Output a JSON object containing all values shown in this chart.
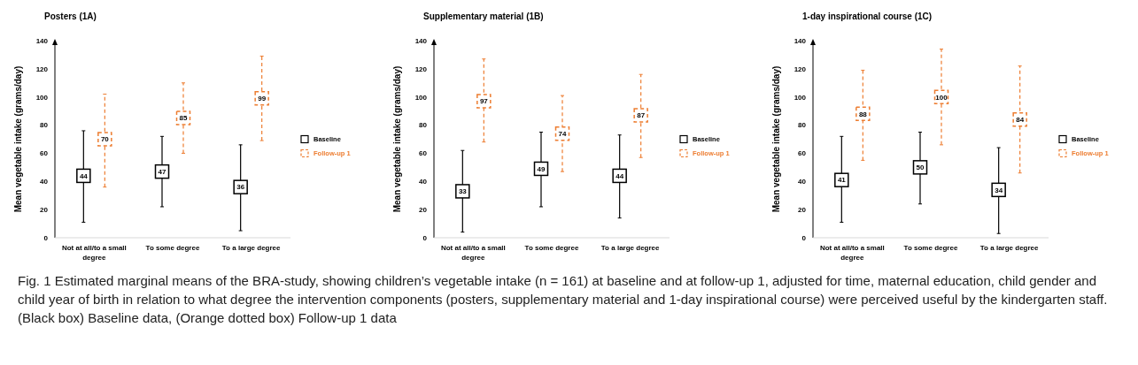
{
  "chart_data": [
    {
      "type": "scatter",
      "title": "Posters (1A)",
      "ylabel": "Mean vegetable intake (grams/day)",
      "categories": [
        "Not at all/to a small degree",
        "To some degree",
        "To a large degree"
      ],
      "ylim": [
        0,
        140
      ],
      "yticks": [
        0,
        20,
        40,
        60,
        80,
        100,
        120,
        140
      ],
      "marker": "square",
      "legend": "right",
      "data_labels": true,
      "series": [
        {
          "name": "Baseline",
          "color": "#000000",
          "line_style": "solid",
          "values": [
            44,
            47,
            36
          ],
          "errors": [
            [
              11,
              76
            ],
            [
              22,
              72
            ],
            [
              5,
              66
            ]
          ]
        },
        {
          "name": "Follow-up 1",
          "color": "#ed7d31",
          "line_style": "dashed",
          "values": [
            70,
            85,
            99
          ],
          "errors": [
            [
              36,
              102
            ],
            [
              60,
              110
            ],
            [
              69,
              129
            ]
          ]
        }
      ],
      "annotations": [
        "Fig. 1  Estimated marginal means of the BRA-study, showing children’s vegetable intake (n = 161) at baseline and at follow-up 1, adjusted for time, maternal education, child gender and child year of birth in relation to what degree the intervention components (posters, supplementary material and 1-day inspirational course) were perceived useful by the kindergarten staff. (Black box) Baseline data, (Orange dotted box) Follow-up 1 data"
      ]
    },
    {
      "type": "scatter",
      "title": "Supplementary material (1B)",
      "ylabel": "Mean vegetable intake (grams/day)",
      "categories": [
        "Not at all/to a small degree",
        "To some degree",
        "To a large degree"
      ],
      "ylim": [
        0,
        140
      ],
      "yticks": [
        0,
        20,
        40,
        60,
        80,
        100,
        120,
        140
      ],
      "marker": "square",
      "legend": "right",
      "data_labels": true,
      "series": [
        {
          "name": "Baseline",
          "color": "#000000",
          "line_style": "solid",
          "values": [
            33,
            49,
            44
          ],
          "errors": [
            [
              4,
              62
            ],
            [
              22,
              75
            ],
            [
              14,
              73
            ]
          ]
        },
        {
          "name": "Follow-up 1",
          "color": "#ed7d31",
          "line_style": "dashed",
          "values": [
            97,
            74,
            87
          ],
          "errors": [
            [
              68,
              127
            ],
            [
              47,
              101
            ],
            [
              57,
              116
            ]
          ]
        }
      ]
    },
    {
      "type": "scatter",
      "title": "1-day inspirational course (1C)",
      "ylabel": "Mean vegetable intake (grams/day)",
      "categories": [
        "Not at all/to a small degree",
        "To some degree",
        "To a large degree"
      ],
      "ylim": [
        0,
        140
      ],
      "yticks": [
        0,
        20,
        40,
        60,
        80,
        100,
        120,
        140
      ],
      "marker": "square",
      "legend": "right",
      "data_labels": true,
      "series": [
        {
          "name": "Baseline",
          "color": "#000000",
          "line_style": "solid",
          "values": [
            41,
            50,
            34
          ],
          "errors": [
            [
              11,
              72
            ],
            [
              24,
              75
            ],
            [
              3,
              64
            ]
          ]
        },
        {
          "name": "Follow-up 1",
          "color": "#ed7d31",
          "line_style": "dashed",
          "values": [
            88,
            100,
            84
          ],
          "errors": [
            [
              55,
              119
            ],
            [
              66,
              134
            ],
            [
              46,
              122
            ]
          ]
        }
      ]
    }
  ]
}
